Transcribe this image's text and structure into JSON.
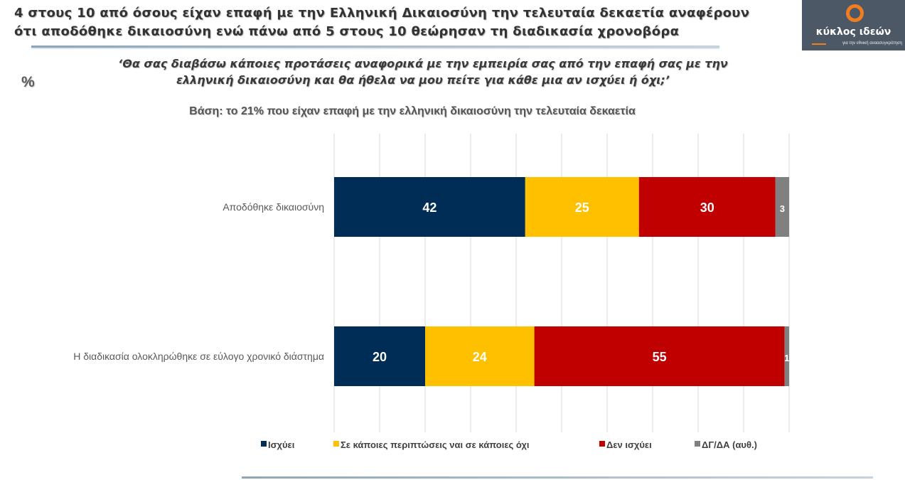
{
  "header": {
    "title_line1": "4 στους 10 από όσους είχαν επαφή με την Ελληνική Δικαιοσύνη την τελευταία δεκαετία αναφέρουν",
    "title_line2": "ότι αποδόθηκε δικαιοσύνη ενώ πάνω από 5 στους 10 θεώρησαν τη διαδικασία χρονοβόρα"
  },
  "logo": {
    "name": "κύκλος ιδεών",
    "tagline": "για την εθνική αναασυγκρότηση"
  },
  "percent_sign": "%",
  "question": {
    "line1": "‘Θα σας διαβάσω κάποιες προτάσεις αναφορικά με την εμπειρία σας από την επαφή σας με την",
    "line2": "ελληνική δικαιοσύνη και θα ήθελα να μου πείτε για κάθε μια αν ισχύει ή όχι;’"
  },
  "base_note": "Βάση: το 21% που είχαν επαφή με την ελληνική δικαιοσύνη την τελευταία δεκαετία",
  "chart_data": {
    "type": "bar",
    "orientation": "horizontal",
    "stacked": true,
    "categories": [
      "Αποδόθηκε δικαιοσύνη",
      "Η διαδικασία ολοκληρώθηκε σε εύλογο χρονικό διάστημα"
    ],
    "series": [
      {
        "name": "Ισχύει",
        "values": [
          42,
          20
        ],
        "labels": [
          "42",
          "20"
        ],
        "color": "#002d56"
      },
      {
        "name": "Σε κάποιες περιπτώσεις ναι σε κάποιες όχι",
        "values": [
          25,
          24
        ],
        "labels": [
          "25",
          "24"
        ],
        "color": "#ffc000"
      },
      {
        "name": "Δεν ισχύει",
        "values": [
          30,
          55
        ],
        "labels": [
          "30",
          "55"
        ],
        "color": "#c00000"
      },
      {
        "name": "ΔΓ/ΔΑ (αυθ.)",
        "values": [
          3,
          1
        ],
        "labels": [
          "3",
          "1"
        ],
        "color": "#808080"
      }
    ],
    "xlim": [
      0,
      100
    ],
    "grid": true,
    "legend_position": "bottom"
  }
}
